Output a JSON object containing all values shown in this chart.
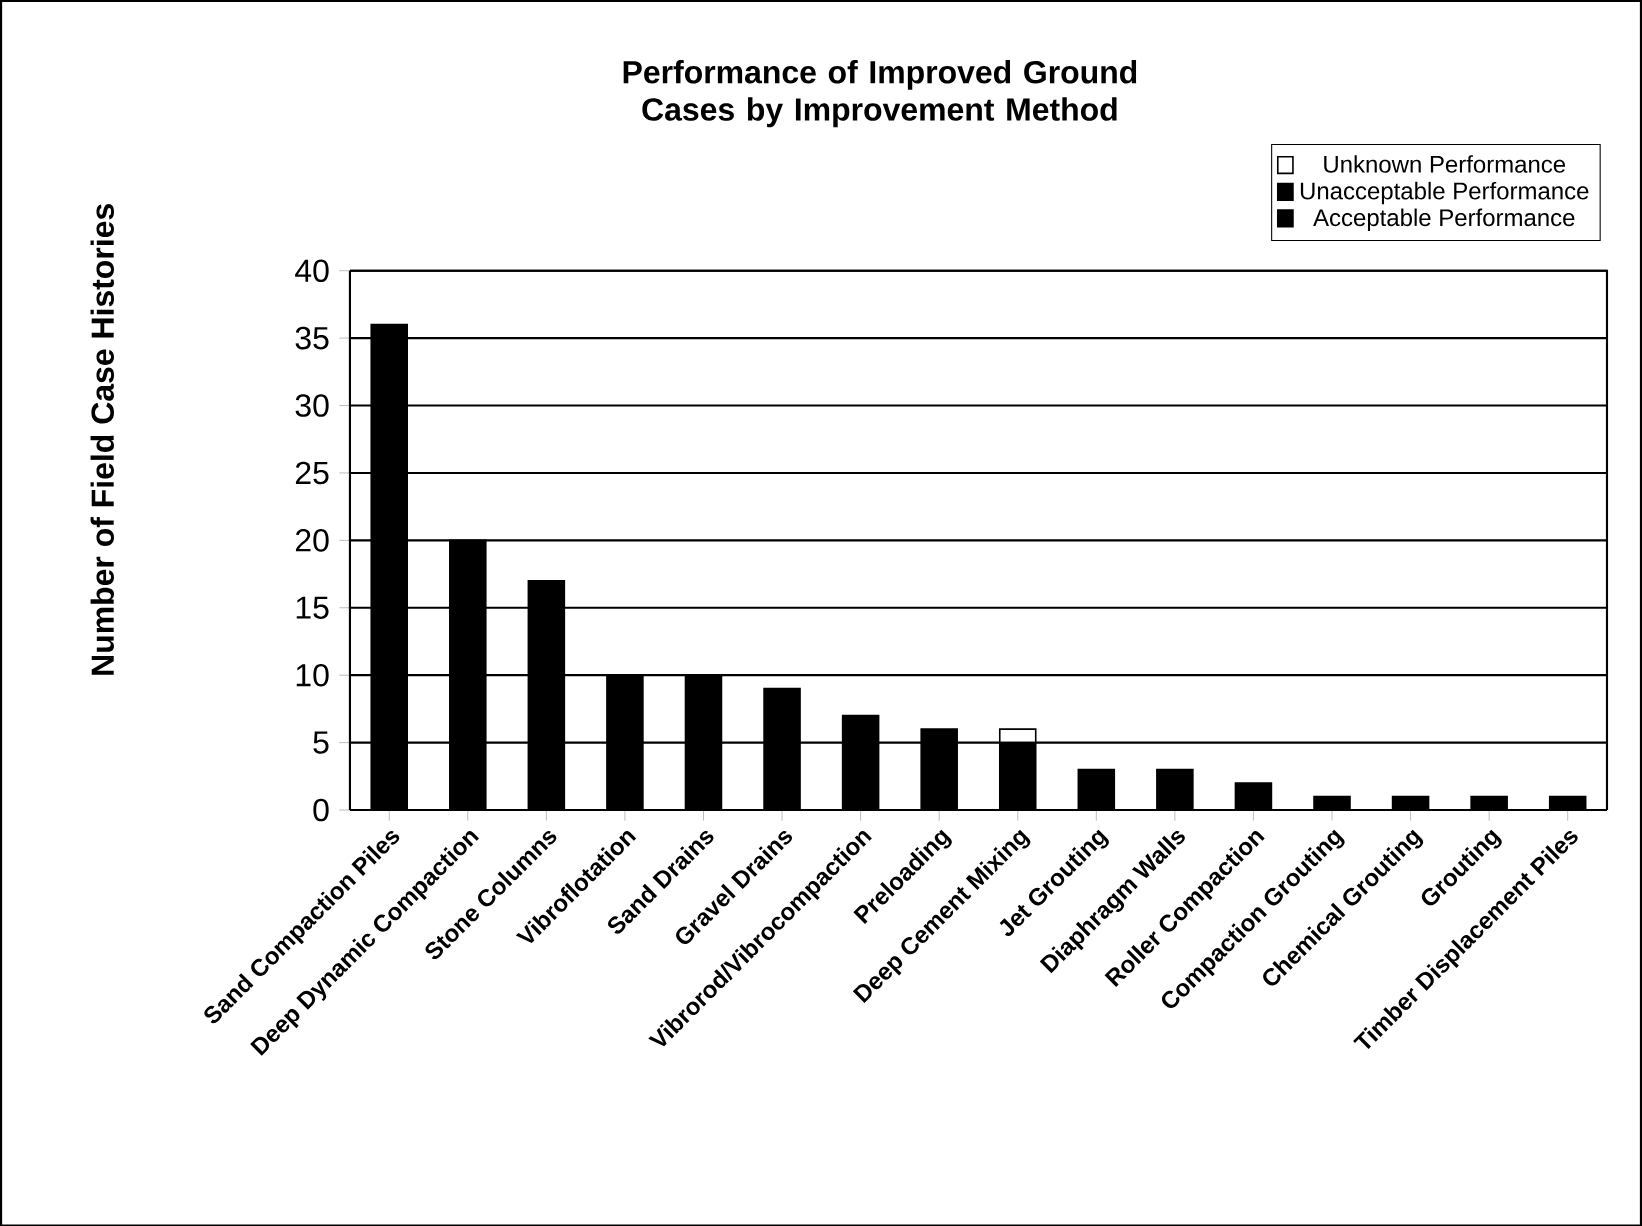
{
  "chart_data": {
    "type": "bar",
    "title": "Performance of Improved Ground Cases by Improvement Method",
    "ylabel": "Number of Field Case Histories",
    "categories": [
      "Sand Compaction Piles",
      "Deep Dynamic Compaction",
      "Stone Columns",
      "Vibroflotation",
      "Sand Drains",
      "Gravel Drains",
      "Vibrorod/Vibrocompaction",
      "Preloading",
      "Deep Cement Mixing",
      "Jet Grouting",
      "Diaphragm Walls",
      "Roller Compaction",
      "Compaction Grouting",
      "Chemical Grouting",
      "Grouting",
      "Timber Displacement Piles"
    ],
    "series": [
      {
        "name": "Acceptable Performance",
        "color": "#000000",
        "values": [
          36,
          20,
          17,
          10,
          10,
          9,
          7,
          6,
          5,
          3,
          3,
          2,
          1,
          1,
          1,
          1
        ]
      },
      {
        "name": "Unacceptable Performance",
        "color": "#000000",
        "values": [
          0,
          0,
          0,
          0,
          0,
          0,
          0,
          0,
          0,
          0,
          0,
          0,
          0,
          0,
          0,
          0
        ]
      },
      {
        "name": "Unknown Performance",
        "color": "#ffffff",
        "values": [
          0,
          0,
          0,
          0,
          0,
          0,
          0,
          0,
          1,
          0,
          0,
          0,
          0,
          0,
          0,
          0
        ]
      }
    ],
    "stacked": true,
    "ylim": [
      0,
      40
    ],
    "yticks": [
      0,
      5,
      10,
      15,
      20,
      25,
      30,
      35,
      40
    ],
    "grid": "y",
    "legend": "top right"
  }
}
